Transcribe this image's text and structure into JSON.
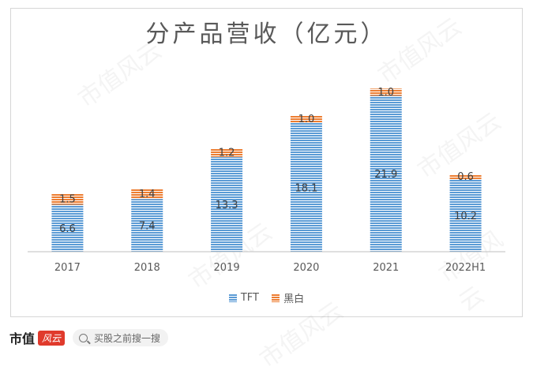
{
  "footer": {
    "brand_name": "市值",
    "brand_mark": "风云",
    "search_placeholder": "买股之前搜一搜"
  },
  "watermark": "市值风云",
  "colors": {
    "tft": "#5b9bd5",
    "bw": "#ed7d31",
    "axis": "#bfbfbf",
    "text": "#595959"
  },
  "chart_data": {
    "type": "bar",
    "stacked": true,
    "title": "分产品营收（亿元）",
    "categories": [
      "2017",
      "2018",
      "2019",
      "2020",
      "2021",
      "2022H1"
    ],
    "series": [
      {
        "name": "TFT",
        "values": [
          6.6,
          7.4,
          13.3,
          18.1,
          21.9,
          10.2
        ]
      },
      {
        "name": "黑白",
        "values": [
          1.5,
          1.4,
          1.2,
          1.0,
          1.0,
          0.6
        ]
      }
    ],
    "ylim": [
      0,
      23.6
    ],
    "grid": false,
    "legend": "bottom"
  }
}
